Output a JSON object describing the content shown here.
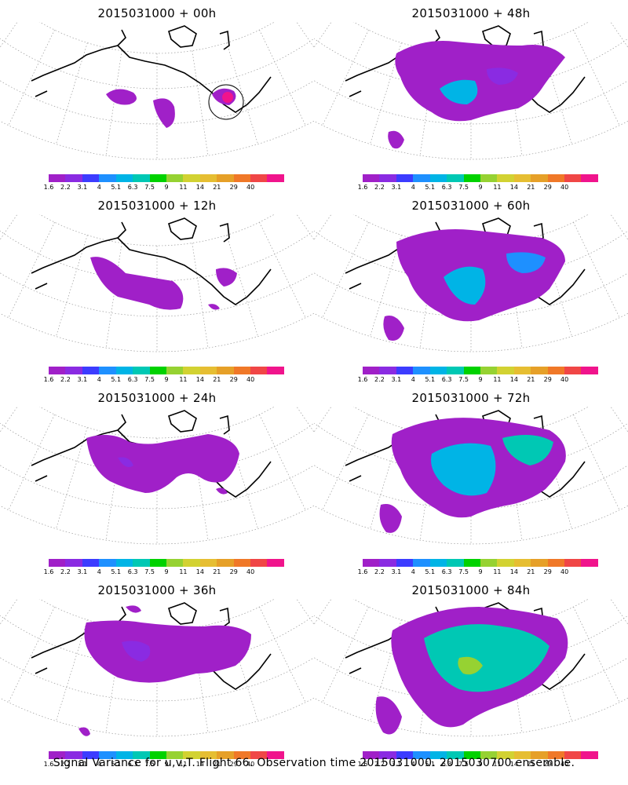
{
  "panels": [
    {
      "id": "p00",
      "title": "2015031000 + 00h"
    },
    {
      "id": "p48",
      "title": "2015031000 + 48h"
    },
    {
      "id": "p12",
      "title": "2015031000 + 12h"
    },
    {
      "id": "p60",
      "title": "2015031000 + 60h"
    },
    {
      "id": "p24",
      "title": "2015031000 + 24h"
    },
    {
      "id": "p72",
      "title": "2015031000 + 72h"
    },
    {
      "id": "p36",
      "title": "2015031000 + 36h"
    },
    {
      "id": "p84",
      "title": "2015031000 + 84h"
    }
  ],
  "colorbar": {
    "colors": [
      "#a020c8",
      "#8a2be2",
      "#3c3cff",
      "#1e90ff",
      "#00b4e6",
      "#00c8b4",
      "#00d200",
      "#96d232",
      "#d2d232",
      "#e6be32",
      "#e6a028",
      "#f07828",
      "#f04646",
      "#f0148c"
    ],
    "labels": [
      "1.6",
      "2.2",
      "3.1",
      "4",
      "5.1",
      "6.3",
      "7.5",
      "9",
      "11",
      "14",
      "21",
      "29",
      "40"
    ]
  },
  "footer": "Signal Variance for u,v,T. Flight 66. Observation time 2015031000. 2015030700 ensemble."
}
